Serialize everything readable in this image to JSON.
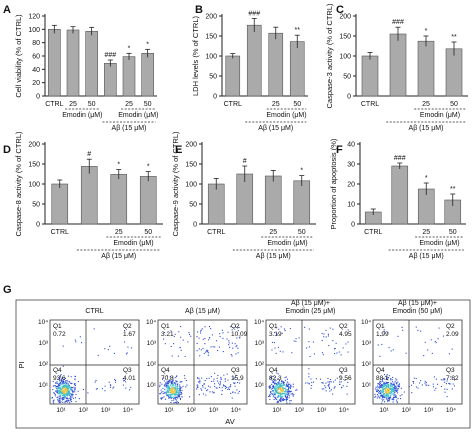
{
  "chart_data": [
    {
      "panel": "A",
      "type": "bar",
      "ylabel": "Cell viability (% of CTRL)",
      "ylim": [
        0,
        120
      ],
      "yticks": [
        0,
        20,
        40,
        60,
        80,
        100,
        120
      ],
      "categories": [
        "CTRL",
        "25",
        "50",
        "",
        "25",
        "50"
      ],
      "values": [
        100,
        99,
        97,
        49,
        59,
        64
      ],
      "errors": [
        6,
        5,
        6,
        5,
        5,
        6
      ],
      "annotations": [
        "",
        "",
        "",
        "###",
        "*",
        "*"
      ],
      "group_labels": [
        {
          "text": "Emodin (μM)",
          "from": 1,
          "to": 2,
          "level": 1
        },
        {
          "text": "Emodin (μM)",
          "from": 4,
          "to": 5,
          "level": 1
        },
        {
          "text": "Aβ (15 μM)",
          "from": 3,
          "to": 5,
          "level": 2
        }
      ]
    },
    {
      "panel": "B",
      "type": "bar",
      "ylabel": "LDH levels (% of CTRL)",
      "ylim": [
        0,
        200
      ],
      "yticks": [
        0,
        50,
        100,
        150,
        200
      ],
      "categories": [
        "CTRL",
        "",
        "25",
        "50"
      ],
      "values": [
        100,
        177,
        157,
        136
      ],
      "errors": [
        6,
        17,
        15,
        16
      ],
      "annotations": [
        "",
        "###",
        "",
        "**"
      ],
      "group_labels": [
        {
          "text": "Emodin (μM)",
          "from": 2,
          "to": 3,
          "level": 1
        },
        {
          "text": "Aβ (15 μM)",
          "from": 1,
          "to": 3,
          "level": 2
        }
      ]
    },
    {
      "panel": "C",
      "type": "bar",
      "ylabel": "Caspase-3 activity (% of CTRL)",
      "ylim": [
        0,
        200
      ],
      "yticks": [
        0,
        50,
        100,
        150,
        200
      ],
      "categories": [
        "CTRL",
        "",
        "25",
        "50"
      ],
      "values": [
        100,
        155,
        137,
        118
      ],
      "errors": [
        9,
        17,
        13,
        17
      ],
      "annotations": [
        "",
        "###",
        "*",
        "**"
      ],
      "group_labels": [
        {
          "text": "Emodin (μM)",
          "from": 2,
          "to": 3,
          "level": 1
        },
        {
          "text": "Aβ (15 μM)",
          "from": 1,
          "to": 3,
          "level": 2
        }
      ]
    },
    {
      "panel": "D",
      "type": "bar",
      "ylabel": "Caspase-8 activity (% of CTRL)",
      "ylim": [
        0,
        200
      ],
      "yticks": [
        0,
        50,
        100,
        150,
        200
      ],
      "categories": [
        "CTRL",
        "",
        "25",
        "50"
      ],
      "values": [
        100,
        144,
        124,
        119
      ],
      "errors": [
        10,
        18,
        12,
        12
      ],
      "annotations": [
        "",
        "#",
        "*",
        "*"
      ],
      "group_labels": [
        {
          "text": "Emodin (μM)",
          "from": 2,
          "to": 3,
          "level": 1
        },
        {
          "text": "Aβ (15 μM)",
          "from": 1,
          "to": 3,
          "level": 2
        }
      ]
    },
    {
      "panel": "E",
      "type": "bar",
      "ylabel": "Caspase-9 activity (% of CTRL)",
      "ylim": [
        0,
        200
      ],
      "yticks": [
        0,
        50,
        100,
        150,
        200
      ],
      "categories": [
        "CTRL",
        "",
        "25",
        "50"
      ],
      "values": [
        100,
        125,
        120,
        108
      ],
      "errors": [
        14,
        20,
        14,
        13
      ],
      "annotations": [
        "",
        "#",
        "",
        "*"
      ],
      "group_labels": [
        {
          "text": "Emodin (μM)",
          "from": 2,
          "to": 3,
          "level": 1
        },
        {
          "text": "Aβ (15 μM)",
          "from": 1,
          "to": 3,
          "level": 2
        }
      ]
    },
    {
      "panel": "F",
      "type": "bar",
      "ylabel": "Proportion of apoptosis (%)",
      "ylim": [
        0,
        40
      ],
      "yticks": [
        0,
        10,
        20,
        30,
        40
      ],
      "categories": [
        "CTRL",
        "",
        "25",
        "50"
      ],
      "values": [
        6,
        29,
        17.5,
        12
      ],
      "errors": [
        1.5,
        1.5,
        3,
        3
      ],
      "annotations": [
        "",
        "###",
        "*",
        "**"
      ],
      "group_labels": [
        {
          "text": "Emodin (μM)",
          "from": 2,
          "to": 3,
          "level": 1
        },
        {
          "text": "Aβ (15 μM)",
          "from": 1,
          "to": 3,
          "level": 2
        }
      ]
    },
    {
      "panel": "G",
      "type": "scatter",
      "xlabel": "AV",
      "ylabel": "PI",
      "axis_ticks": [
        "10¹",
        "10²",
        "10³",
        "10⁴"
      ],
      "plots": [
        {
          "title": "CTRL",
          "Q1": "0.72",
          "Q2": "1.67",
          "Q3": "4.01",
          "Q4": "93.6"
        },
        {
          "title": "Aβ (15 μM)",
          "Q1": "3.21",
          "Q2": "10.09",
          "Q3": "15.9",
          "Q4": "70.8"
        },
        {
          "title": "Aβ (15 μM)+\nEmodin (25 μM)",
          "Q1": "3.19",
          "Q2": "4.95",
          "Q3": "9.56",
          "Q4": "82.3"
        },
        {
          "title": "Aβ (15 μM)+\nEmodin (50 μM)",
          "Q1": "1.99",
          "Q2": "2.09",
          "Q3": "7.82",
          "Q4": "88.1"
        }
      ],
      "quadrant_labels": [
        "Q1",
        "Q2",
        "Q3",
        "Q4"
      ]
    }
  ],
  "colors": {
    "bar": "#aaaaaa",
    "axis": "#222222",
    "dots_outer": "#2f4fd4",
    "dots_inner": "#3fc0c8",
    "dots_core": "#f2c23a"
  }
}
